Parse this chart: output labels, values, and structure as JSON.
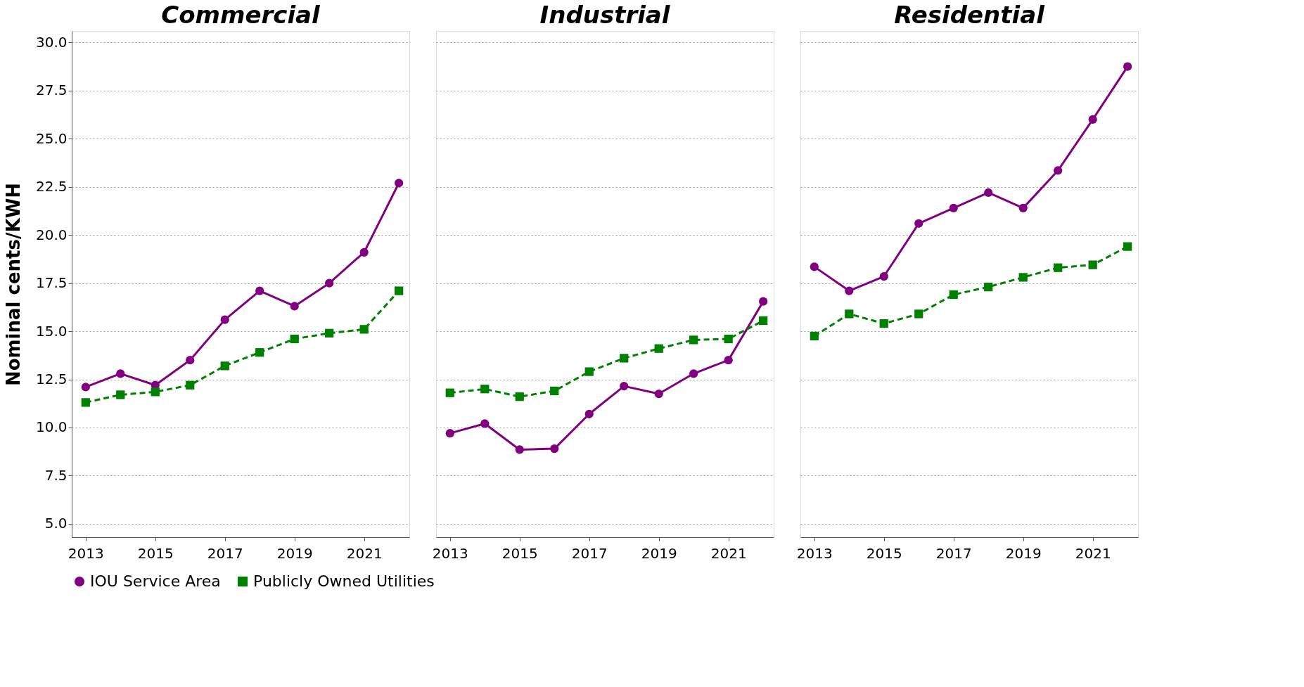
{
  "chart_data": [
    {
      "type": "line",
      "title": "Commercial",
      "ylabel": "Nominal cents/KWH",
      "x": [
        2013,
        2014,
        2015,
        2016,
        2017,
        2018,
        2019,
        2020,
        2021,
        2022
      ],
      "xlim": [
        2012.6,
        2022.3
      ],
      "xticks": [
        2013,
        2015,
        2017,
        2019,
        2021
      ],
      "ylim": [
        4.3,
        30.6
      ],
      "yticks": [
        {
          "value": 5,
          "label": "5.0"
        },
        {
          "value": 7.5,
          "label": "7.5"
        },
        {
          "value": 10,
          "label": "10.0"
        },
        {
          "value": 12.5,
          "label": "12.5"
        },
        {
          "value": 15,
          "label": "15.0"
        },
        {
          "value": 17.5,
          "label": "17.5"
        },
        {
          "value": 20,
          "label": "20.0"
        },
        {
          "value": 22.5,
          "label": "22.5"
        },
        {
          "value": 25,
          "label": "25.0"
        },
        {
          "value": 27.5,
          "label": "27.5"
        },
        {
          "value": 30,
          "label": "30.0"
        }
      ],
      "grid": "y",
      "legend": "bottom",
      "series": [
        {
          "name": "IOU Service Area",
          "color": "#800080",
          "marker": "circle",
          "line_style": "solid",
          "values": [
            12.1,
            12.8,
            12.2,
            13.5,
            15.6,
            17.1,
            16.3,
            17.5,
            19.1,
            22.7
          ]
        },
        {
          "name": "Publicly Owned Utilities",
          "color": "#008000",
          "marker": "square",
          "line_style": "dashed",
          "values": [
            11.3,
            11.7,
            11.85,
            12.2,
            13.2,
            13.9,
            14.6,
            14.9,
            15.1,
            17.1
          ]
        }
      ]
    },
    {
      "type": "line",
      "title": "Industrial",
      "x": [
        2013,
        2014,
        2015,
        2016,
        2017,
        2018,
        2019,
        2020,
        2021,
        2022
      ],
      "xlim": [
        2012.6,
        2022.3
      ],
      "xticks": [
        2013,
        2015,
        2017,
        2019,
        2021
      ],
      "ylim": [
        4.3,
        30.6
      ],
      "yticks": [
        5,
        7.5,
        10,
        12.5,
        15,
        17.5,
        20,
        22.5,
        25,
        27.5,
        30
      ],
      "grid": "y",
      "tick_labels": "x",
      "series": [
        {
          "name": "IOU Service Area",
          "color": "#800080",
          "marker": "circle",
          "line_style": "solid",
          "values": [
            9.7,
            10.2,
            8.85,
            8.9,
            10.7,
            12.15,
            11.75,
            12.8,
            13.5,
            16.55
          ]
        },
        {
          "name": "Publicly Owned Utilities",
          "color": "#008000",
          "marker": "square",
          "line_style": "dashed",
          "values": [
            11.8,
            12.0,
            11.6,
            11.9,
            12.9,
            13.6,
            14.1,
            14.55,
            14.6,
            15.55
          ]
        }
      ]
    },
    {
      "type": "line",
      "title": "Residential",
      "x": [
        2013,
        2014,
        2015,
        2016,
        2017,
        2018,
        2019,
        2020,
        2021,
        2022
      ],
      "xlim": [
        2012.6,
        2022.3
      ],
      "xticks": [
        2013,
        2015,
        2017,
        2019,
        2021
      ],
      "ylim": [
        4.3,
        30.6
      ],
      "yticks": [
        5,
        7.5,
        10,
        12.5,
        15,
        17.5,
        20,
        22.5,
        25,
        27.5,
        30
      ],
      "grid": "y",
      "tick_labels": "x",
      "series": [
        {
          "name": "IOU Service Area",
          "color": "#800080",
          "marker": "circle",
          "line_style": "solid",
          "values": [
            18.35,
            17.1,
            17.85,
            20.6,
            21.4,
            22.2,
            21.4,
            23.35,
            26.0,
            28.75
          ]
        },
        {
          "name": "Publicly Owned Utilities",
          "color": "#008000",
          "marker": "square",
          "line_style": "dashed",
          "values": [
            14.75,
            15.9,
            15.4,
            15.9,
            16.9,
            17.3,
            17.8,
            18.3,
            18.45,
            19.4
          ]
        }
      ]
    }
  ]
}
